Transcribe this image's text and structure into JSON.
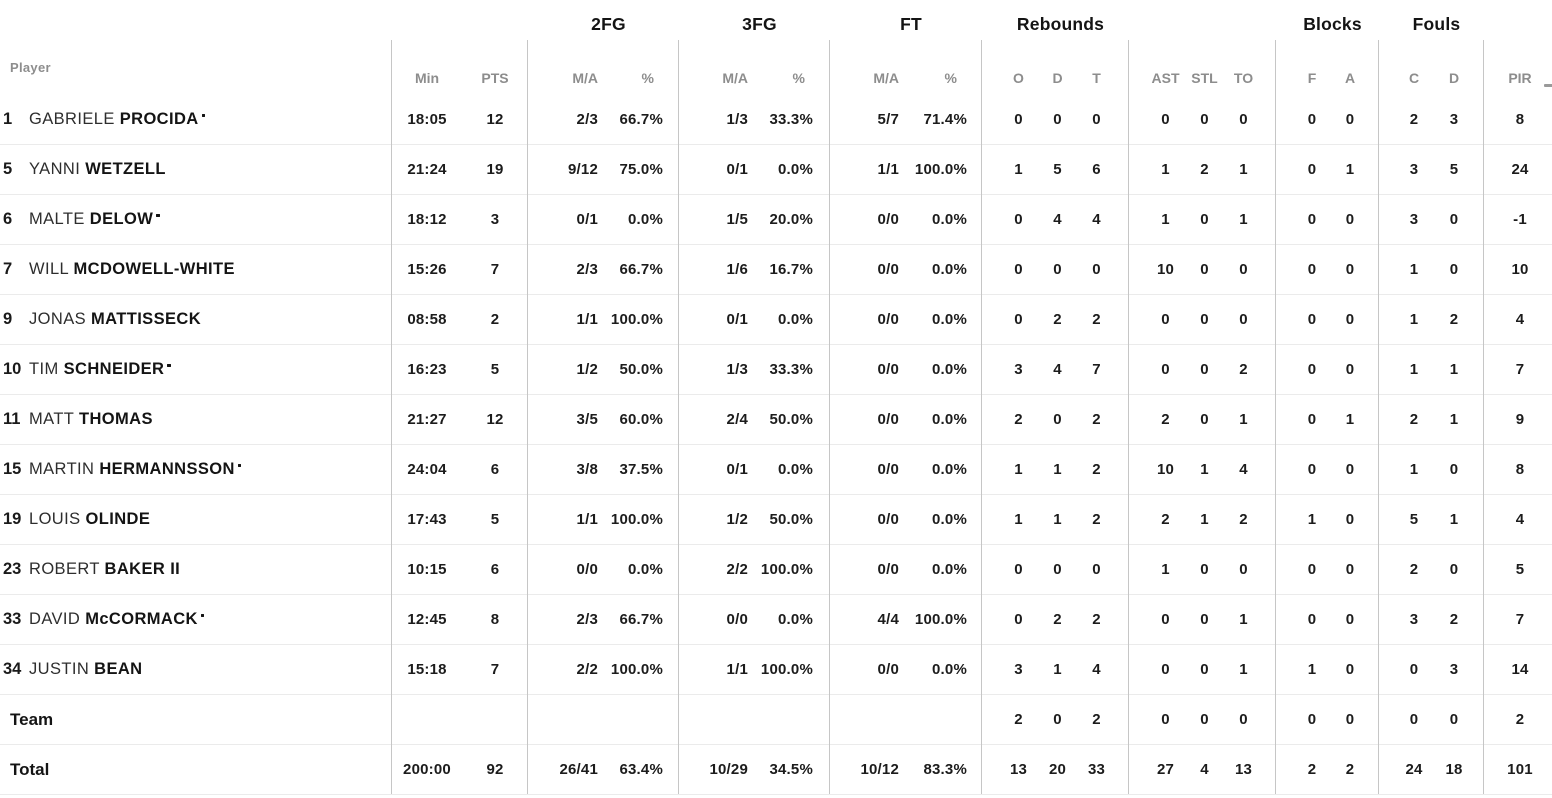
{
  "header": {
    "player_label": "Player",
    "groups": [
      {
        "id": "fg2",
        "label": "2FG"
      },
      {
        "id": "fg3",
        "label": "3FG"
      },
      {
        "id": "ft",
        "label": "FT"
      },
      {
        "id": "rebounds",
        "label": "Rebounds"
      },
      {
        "id": "blocks",
        "label": "Blocks"
      },
      {
        "id": "fouls",
        "label": "Fouls"
      }
    ],
    "sub": {
      "min": "Min",
      "pts": "PTS",
      "fg2_ma": "M/A",
      "fg2_pct": "%",
      "fg3_ma": "M/A",
      "fg3_pct": "%",
      "ft_ma": "M/A",
      "ft_pct": "%",
      "reb_o": "O",
      "reb_d": "D",
      "reb_t": "T",
      "ast": "AST",
      "stl": "STL",
      "to": "TO",
      "blk_f": "F",
      "blk_a": "A",
      "foul_c": "C",
      "foul_d": "D",
      "pir": "PIR"
    }
  },
  "colors": {
    "text": "#1c1c1c",
    "muted": "#8d8d8d",
    "vline": "#c6c6c6",
    "hline": "#ebebeb"
  },
  "rows": [
    {
      "type": "player",
      "no": "1",
      "first": "GABRIELE",
      "last": "PROCIDA",
      "starter": true,
      "min": "18:05",
      "pts": "12",
      "fg2_ma": "2/3",
      "fg2_pct": "66.7%",
      "fg3_ma": "1/3",
      "fg3_pct": "33.3%",
      "ft_ma": "5/7",
      "ft_pct": "71.4%",
      "reb_o": "0",
      "reb_d": "0",
      "reb_t": "0",
      "ast": "0",
      "stl": "0",
      "to": "0",
      "blk_f": "0",
      "blk_a": "0",
      "foul_c": "2",
      "foul_d": "3",
      "pir": "8"
    },
    {
      "type": "player",
      "no": "5",
      "first": "YANNI",
      "last": "WETZELL",
      "starter": false,
      "min": "21:24",
      "pts": "19",
      "fg2_ma": "9/12",
      "fg2_pct": "75.0%",
      "fg3_ma": "0/1",
      "fg3_pct": "0.0%",
      "ft_ma": "1/1",
      "ft_pct": "100.0%",
      "reb_o": "1",
      "reb_d": "5",
      "reb_t": "6",
      "ast": "1",
      "stl": "2",
      "to": "1",
      "blk_f": "0",
      "blk_a": "1",
      "foul_c": "3",
      "foul_d": "5",
      "pir": "24"
    },
    {
      "type": "player",
      "no": "6",
      "first": "MALTE",
      "last": "DELOW",
      "starter": true,
      "min": "18:12",
      "pts": "3",
      "fg2_ma": "0/1",
      "fg2_pct": "0.0%",
      "fg3_ma": "1/5",
      "fg3_pct": "20.0%",
      "ft_ma": "0/0",
      "ft_pct": "0.0%",
      "reb_o": "0",
      "reb_d": "4",
      "reb_t": "4",
      "ast": "1",
      "stl": "0",
      "to": "1",
      "blk_f": "0",
      "blk_a": "0",
      "foul_c": "3",
      "foul_d": "0",
      "pir": "-1"
    },
    {
      "type": "player",
      "no": "7",
      "first": "WILL",
      "last": "MCDOWELL-WHITE",
      "starter": false,
      "min": "15:26",
      "pts": "7",
      "fg2_ma": "2/3",
      "fg2_pct": "66.7%",
      "fg3_ma": "1/6",
      "fg3_pct": "16.7%",
      "ft_ma": "0/0",
      "ft_pct": "0.0%",
      "reb_o": "0",
      "reb_d": "0",
      "reb_t": "0",
      "ast": "10",
      "stl": "0",
      "to": "0",
      "blk_f": "0",
      "blk_a": "0",
      "foul_c": "1",
      "foul_d": "0",
      "pir": "10"
    },
    {
      "type": "player",
      "no": "9",
      "first": "JONAS",
      "last": "MATTISSECK",
      "starter": false,
      "min": "08:58",
      "pts": "2",
      "fg2_ma": "1/1",
      "fg2_pct": "100.0%",
      "fg3_ma": "0/1",
      "fg3_pct": "0.0%",
      "ft_ma": "0/0",
      "ft_pct": "0.0%",
      "reb_o": "0",
      "reb_d": "2",
      "reb_t": "2",
      "ast": "0",
      "stl": "0",
      "to": "0",
      "blk_f": "0",
      "blk_a": "0",
      "foul_c": "1",
      "foul_d": "2",
      "pir": "4"
    },
    {
      "type": "player",
      "no": "10",
      "first": "TIM",
      "last": "SCHNEIDER",
      "starter": true,
      "min": "16:23",
      "pts": "5",
      "fg2_ma": "1/2",
      "fg2_pct": "50.0%",
      "fg3_ma": "1/3",
      "fg3_pct": "33.3%",
      "ft_ma": "0/0",
      "ft_pct": "0.0%",
      "reb_o": "3",
      "reb_d": "4",
      "reb_t": "7",
      "ast": "0",
      "stl": "0",
      "to": "2",
      "blk_f": "0",
      "blk_a": "0",
      "foul_c": "1",
      "foul_d": "1",
      "pir": "7"
    },
    {
      "type": "player",
      "no": "11",
      "first": "MATT",
      "last": "THOMAS",
      "starter": false,
      "min": "21:27",
      "pts": "12",
      "fg2_ma": "3/5",
      "fg2_pct": "60.0%",
      "fg3_ma": "2/4",
      "fg3_pct": "50.0%",
      "ft_ma": "0/0",
      "ft_pct": "0.0%",
      "reb_o": "2",
      "reb_d": "0",
      "reb_t": "2",
      "ast": "2",
      "stl": "0",
      "to": "1",
      "blk_f": "0",
      "blk_a": "1",
      "foul_c": "2",
      "foul_d": "1",
      "pir": "9"
    },
    {
      "type": "player",
      "no": "15",
      "first": "MARTIN",
      "last": "HERMANNSSON",
      "starter": true,
      "min": "24:04",
      "pts": "6",
      "fg2_ma": "3/8",
      "fg2_pct": "37.5%",
      "fg3_ma": "0/1",
      "fg3_pct": "0.0%",
      "ft_ma": "0/0",
      "ft_pct": "0.0%",
      "reb_o": "1",
      "reb_d": "1",
      "reb_t": "2",
      "ast": "10",
      "stl": "1",
      "to": "4",
      "blk_f": "0",
      "blk_a": "0",
      "foul_c": "1",
      "foul_d": "0",
      "pir": "8"
    },
    {
      "type": "player",
      "no": "19",
      "first": "LOUIS",
      "last": "OLINDE",
      "starter": false,
      "min": "17:43",
      "pts": "5",
      "fg2_ma": "1/1",
      "fg2_pct": "100.0%",
      "fg3_ma": "1/2",
      "fg3_pct": "50.0%",
      "ft_ma": "0/0",
      "ft_pct": "0.0%",
      "reb_o": "1",
      "reb_d": "1",
      "reb_t": "2",
      "ast": "2",
      "stl": "1",
      "to": "2",
      "blk_f": "1",
      "blk_a": "0",
      "foul_c": "5",
      "foul_d": "1",
      "pir": "4"
    },
    {
      "type": "player",
      "no": "23",
      "first": "ROBERT",
      "last": "BAKER II",
      "starter": false,
      "min": "10:15",
      "pts": "6",
      "fg2_ma": "0/0",
      "fg2_pct": "0.0%",
      "fg3_ma": "2/2",
      "fg3_pct": "100.0%",
      "ft_ma": "0/0",
      "ft_pct": "0.0%",
      "reb_o": "0",
      "reb_d": "0",
      "reb_t": "0",
      "ast": "1",
      "stl": "0",
      "to": "0",
      "blk_f": "0",
      "blk_a": "0",
      "foul_c": "2",
      "foul_d": "0",
      "pir": "5"
    },
    {
      "type": "player",
      "no": "33",
      "first": "DAVID",
      "last": "McCORMACK",
      "starter": true,
      "min": "12:45",
      "pts": "8",
      "fg2_ma": "2/3",
      "fg2_pct": "66.7%",
      "fg3_ma": "0/0",
      "fg3_pct": "0.0%",
      "ft_ma": "4/4",
      "ft_pct": "100.0%",
      "reb_o": "0",
      "reb_d": "2",
      "reb_t": "2",
      "ast": "0",
      "stl": "0",
      "to": "1",
      "blk_f": "0",
      "blk_a": "0",
      "foul_c": "3",
      "foul_d": "2",
      "pir": "7"
    },
    {
      "type": "player",
      "no": "34",
      "first": "JUSTIN",
      "last": "BEAN",
      "starter": false,
      "min": "15:18",
      "pts": "7",
      "fg2_ma": "2/2",
      "fg2_pct": "100.0%",
      "fg3_ma": "1/1",
      "fg3_pct": "100.0%",
      "ft_ma": "0/0",
      "ft_pct": "0.0%",
      "reb_o": "3",
      "reb_d": "1",
      "reb_t": "4",
      "ast": "0",
      "stl": "0",
      "to": "1",
      "blk_f": "1",
      "blk_a": "0",
      "foul_c": "0",
      "foul_d": "3",
      "pir": "14"
    },
    {
      "type": "team",
      "label": "Team",
      "min": "",
      "pts": "",
      "fg2_ma": "",
      "fg2_pct": "",
      "fg3_ma": "",
      "fg3_pct": "",
      "ft_ma": "",
      "ft_pct": "",
      "reb_o": "2",
      "reb_d": "0",
      "reb_t": "2",
      "ast": "0",
      "stl": "0",
      "to": "0",
      "blk_f": "0",
      "blk_a": "0",
      "foul_c": "0",
      "foul_d": "0",
      "pir": "2"
    },
    {
      "type": "total",
      "label": "Total",
      "min": "200:00",
      "pts": "92",
      "fg2_ma": "26/41",
      "fg2_pct": "63.4%",
      "fg3_ma": "10/29",
      "fg3_pct": "34.5%",
      "ft_ma": "10/12",
      "ft_pct": "83.3%",
      "reb_o": "13",
      "reb_d": "20",
      "reb_t": "33",
      "ast": "27",
      "stl": "4",
      "to": "13",
      "blk_f": "2",
      "blk_a": "2",
      "foul_c": "24",
      "foul_d": "18",
      "pir": "101"
    }
  ]
}
